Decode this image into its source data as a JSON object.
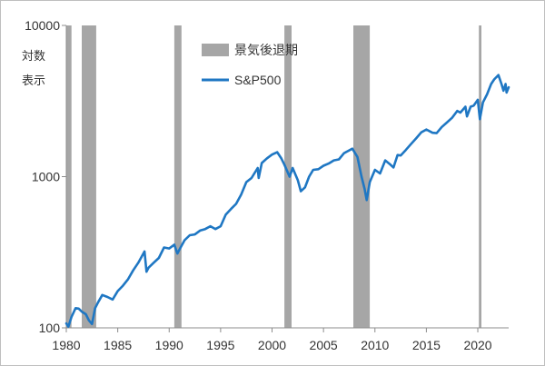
{
  "chart_data": {
    "type": "line",
    "title": "",
    "ylabel": "対数\n表示",
    "y_scale": "log",
    "ylim": [
      100,
      10000
    ],
    "xlim": [
      1980,
      2023
    ],
    "y_ticks": [
      100,
      1000,
      10000
    ],
    "y_tick_labels": [
      "100",
      "1000",
      "10000"
    ],
    "x_ticks": [
      1980,
      1985,
      1990,
      1995,
      2000,
      2005,
      2010,
      2015,
      2020
    ],
    "x_tick_labels": [
      "1980",
      "1985",
      "1990",
      "1995",
      "2000",
      "2005",
      "2010",
      "2015",
      "2020"
    ],
    "legend_placement": "top-center",
    "legend": [
      {
        "label": "景気後退期",
        "kind": "band",
        "color": "#a6a6a6"
      },
      {
        "label": "S&P500",
        "kind": "line",
        "color": "#1f77c3"
      }
    ],
    "recession_periods": [
      [
        1980.0,
        1980.5
      ],
      [
        1981.5,
        1982.9
      ],
      [
        1990.5,
        1991.2
      ],
      [
        2001.2,
        2001.9
      ],
      [
        2007.9,
        2009.5
      ],
      [
        2020.1,
        2020.35
      ]
    ],
    "series": [
      {
        "name": "S&P500",
        "color": "#1f77c3",
        "points": [
          [
            1980.0,
            107
          ],
          [
            1980.2,
            102
          ],
          [
            1980.5,
            118
          ],
          [
            1980.9,
            135
          ],
          [
            1981.2,
            134
          ],
          [
            1981.5,
            128
          ],
          [
            1981.9,
            123
          ],
          [
            1982.2,
            112
          ],
          [
            1982.5,
            106
          ],
          [
            1982.8,
            135
          ],
          [
            1983.1,
            148
          ],
          [
            1983.5,
            165
          ],
          [
            1984.0,
            160
          ],
          [
            1984.5,
            154
          ],
          [
            1985.0,
            175
          ],
          [
            1985.5,
            190
          ],
          [
            1986.0,
            210
          ],
          [
            1986.5,
            240
          ],
          [
            1987.0,
            270
          ],
          [
            1987.6,
            320
          ],
          [
            1987.8,
            235
          ],
          [
            1988.0,
            250
          ],
          [
            1988.5,
            270
          ],
          [
            1989.0,
            290
          ],
          [
            1989.5,
            340
          ],
          [
            1990.0,
            335
          ],
          [
            1990.5,
            355
          ],
          [
            1990.8,
            310
          ],
          [
            1991.0,
            330
          ],
          [
            1991.5,
            380
          ],
          [
            1992.0,
            410
          ],
          [
            1992.5,
            415
          ],
          [
            1993.0,
            440
          ],
          [
            1993.5,
            450
          ],
          [
            1994.0,
            470
          ],
          [
            1994.5,
            450
          ],
          [
            1995.0,
            470
          ],
          [
            1995.5,
            560
          ],
          [
            1996.0,
            610
          ],
          [
            1996.5,
            660
          ],
          [
            1997.0,
            760
          ],
          [
            1997.5,
            920
          ],
          [
            1998.0,
            980
          ],
          [
            1998.6,
            1140
          ],
          [
            1998.7,
            980
          ],
          [
            1999.0,
            1230
          ],
          [
            1999.5,
            1320
          ],
          [
            2000.0,
            1400
          ],
          [
            2000.5,
            1450
          ],
          [
            2000.9,
            1320
          ],
          [
            2001.2,
            1200
          ],
          [
            2001.7,
            1000
          ],
          [
            2002.0,
            1140
          ],
          [
            2002.5,
            950
          ],
          [
            2002.8,
            800
          ],
          [
            2003.2,
            850
          ],
          [
            2003.6,
            1000
          ],
          [
            2004.0,
            1110
          ],
          [
            2004.5,
            1120
          ],
          [
            2005.0,
            1180
          ],
          [
            2005.5,
            1220
          ],
          [
            2006.0,
            1280
          ],
          [
            2006.5,
            1300
          ],
          [
            2007.0,
            1430
          ],
          [
            2007.8,
            1530
          ],
          [
            2008.3,
            1350
          ],
          [
            2008.7,
            1000
          ],
          [
            2009.0,
            830
          ],
          [
            2009.2,
            700
          ],
          [
            2009.5,
            920
          ],
          [
            2010.0,
            1110
          ],
          [
            2010.5,
            1050
          ],
          [
            2011.0,
            1280
          ],
          [
            2011.5,
            1200
          ],
          [
            2011.8,
            1150
          ],
          [
            2012.2,
            1390
          ],
          [
            2012.5,
            1380
          ],
          [
            2013.0,
            1500
          ],
          [
            2013.5,
            1640
          ],
          [
            2014.0,
            1790
          ],
          [
            2014.5,
            1960
          ],
          [
            2015.0,
            2050
          ],
          [
            2015.6,
            1950
          ],
          [
            2016.0,
            1940
          ],
          [
            2016.5,
            2130
          ],
          [
            2017.0,
            2280
          ],
          [
            2017.5,
            2450
          ],
          [
            2018.0,
            2720
          ],
          [
            2018.3,
            2650
          ],
          [
            2018.8,
            2900
          ],
          [
            2018.95,
            2500
          ],
          [
            2019.3,
            2900
          ],
          [
            2019.6,
            2950
          ],
          [
            2020.0,
            3220
          ],
          [
            2020.2,
            2400
          ],
          [
            2020.5,
            3100
          ],
          [
            2020.9,
            3500
          ],
          [
            2021.3,
            4100
          ],
          [
            2021.6,
            4400
          ],
          [
            2022.0,
            4700
          ],
          [
            2022.3,
            4100
          ],
          [
            2022.5,
            3700
          ],
          [
            2022.7,
            4100
          ],
          [
            2022.8,
            3600
          ],
          [
            2023.0,
            3900
          ]
        ]
      }
    ]
  }
}
